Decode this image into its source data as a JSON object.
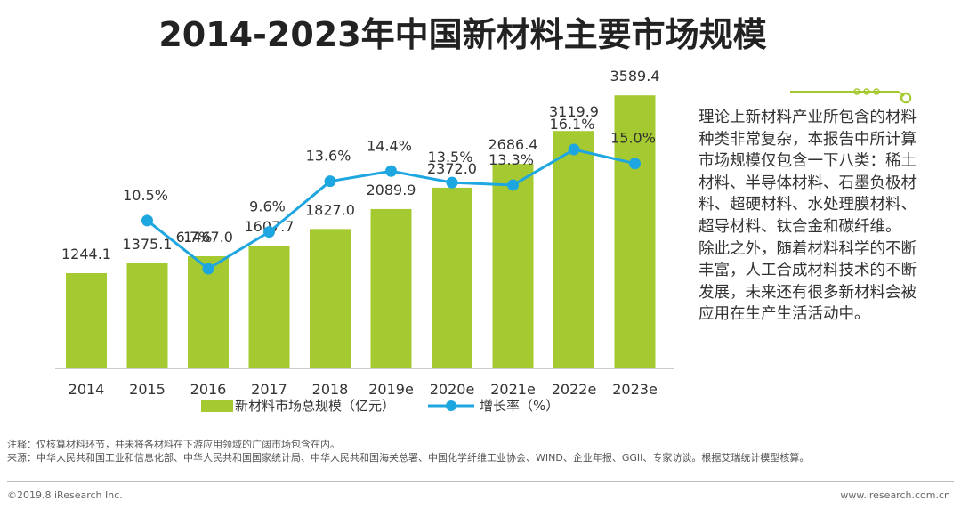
{
  "title": "2014-2023年中国新材料主要市场规模",
  "chart_data": {
    "type": "bar+line",
    "title": "2014-2023年中国新材料主要市场规模",
    "categories": [
      "2014",
      "2015",
      "2016",
      "2017",
      "2018",
      "2019e",
      "2020e",
      "2021e",
      "2022e",
      "2023e"
    ],
    "series": [
      {
        "name": "新材料市场总规模（亿元）",
        "type": "bar",
        "axis": "left",
        "color": "#a5c930",
        "values": [
          1244.1,
          1375.1,
          1467.0,
          1607.7,
          1827.0,
          2089.9,
          2372.0,
          2686.4,
          3119.9,
          3589.4
        ],
        "labels": [
          "1244.1",
          "1375.1",
          "1467.0",
          "1607.7",
          "1827.0",
          "2089.9",
          "2372.0",
          "2686.4",
          "3119.9",
          "3589.4"
        ]
      },
      {
        "name": "增长率（%）",
        "type": "line",
        "axis": "right",
        "color": "#1ea6e0",
        "values": [
          null,
          10.5,
          6.7,
          9.6,
          13.6,
          14.4,
          13.5,
          13.3,
          16.1,
          15.0
        ],
        "labels": [
          "",
          "10.5%",
          "6.7%",
          "9.6%",
          "13.6%",
          "14.4%",
          "13.5%",
          "13.3%",
          "16.1%",
          "15.0%"
        ]
      }
    ],
    "bar_axis_range": [
      0,
      4800
    ],
    "line_axis_range": [
      -20,
      20
    ],
    "legend_position": "bottom"
  },
  "side_paragraphs": [
    "理论上新材料产业所包含的材料种类非常复杂，本报告中所计算市场规模仅包含一下八类：稀土材料、半导体材料、石墨负极材料、超硬材料、水处理膜材料、超导材料、钛合金和碳纤维。",
    "除此之外，随着材料科学的不断丰富，人工合成材料技术的不断发展，未来还有很多新材料会被应用在生产生活活动中。"
  ],
  "notes": {
    "note": "注释：仅核算材料环节，并未将各材料在下游应用领域的广阔市场包含在内。",
    "source": "来源：中华人民共和国工业和信息化部、中华人民共和国国家统计局、中华人民共和国海关总署、中国化学纤维工业协会、WIND、企业年报、GGII、专家访谈。根据艾瑞统计模型核算。"
  },
  "footer": {
    "copyright": "©2019.8 iResearch Inc.",
    "website": "www.iresearch.com.cn"
  }
}
